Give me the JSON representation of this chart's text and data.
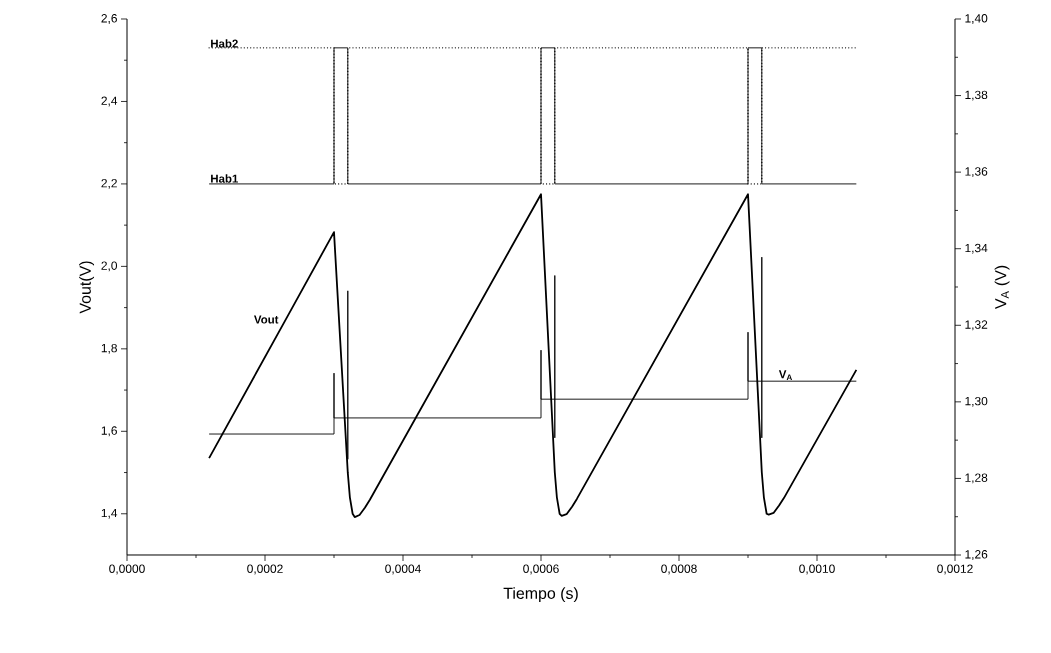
{
  "chart_data": {
    "type": "line",
    "xlabel": "Tiempo (s)",
    "ylabel": "Vout(V)",
    "y2label": "V$_{A}$ (V)",
    "xlim": [
      0,
      0.0012
    ],
    "xticks": [
      {
        "value": 0,
        "label": "0,0000"
      },
      {
        "value": 0.0002,
        "label": "0,0002"
      },
      {
        "value": 0.0004,
        "label": "0,0004"
      },
      {
        "value": 0.0006,
        "label": "0,0006"
      },
      {
        "value": 0.0008,
        "label": "0,0008"
      },
      {
        "value": 0.001,
        "label": "0,0010"
      },
      {
        "value": 0.0012,
        "label": "0,0012"
      }
    ],
    "ylim": [
      1.3,
      2.6
    ],
    "yticks": [
      {
        "value": 1.4,
        "label": "1,4"
      },
      {
        "value": 1.6,
        "label": "1,6"
      },
      {
        "value": 1.8,
        "label": "1,8"
      },
      {
        "value": 2.0,
        "label": "2,0"
      },
      {
        "value": 2.2,
        "label": "2,2"
      },
      {
        "value": 2.4,
        "label": "2,4"
      },
      {
        "value": 2.6,
        "label": "2,6"
      }
    ],
    "y2lim": [
      1.26,
      1.4
    ],
    "y2ticks": [
      {
        "value": 1.26,
        "label": "1,26"
      },
      {
        "value": 1.28,
        "label": "1,28"
      },
      {
        "value": 1.3,
        "label": "1,30"
      },
      {
        "value": 1.32,
        "label": "1,32"
      },
      {
        "value": 1.34,
        "label": "1,34"
      },
      {
        "value": 1.36,
        "label": "1,36"
      },
      {
        "value": 1.38,
        "label": "1,38"
      },
      {
        "value": 1.4,
        "label": "1,40"
      }
    ],
    "series": [
      {
        "name": "Vout",
        "color": "#000000",
        "line_style": "solid",
        "x": [
          0.000119,
          0.00023,
          0.0003,
          0.00032,
          0.000323,
          0.000327,
          0.00033,
          0.000337,
          0.000345,
          0.000352,
          0.0006,
          0.00062,
          0.000623,
          0.000627,
          0.00063,
          0.000637,
          0.000645,
          0.000652,
          0.0009,
          0.00092,
          0.000923,
          0.000927,
          0.00093,
          0.000937,
          0.000945,
          0.000952,
          0.001057
        ],
        "values": [
          1.535,
          1.871,
          2.083,
          1.499,
          1.44,
          1.4,
          1.392,
          1.397,
          1.415,
          1.434,
          2.175,
          1.5,
          1.44,
          1.4,
          1.395,
          1.399,
          1.417,
          1.436,
          2.175,
          1.5,
          1.44,
          1.4,
          1.398,
          1.402,
          1.42,
          1.438,
          1.749
        ]
      },
      {
        "name": "V$_{A}$",
        "color": "#000000",
        "line_style": "solid",
        "axis": "y2",
        "x": [
          0.000119,
          0.0003,
          0.0003,
          0.0003,
          0.00032,
          0.00032,
          0.00032,
          0.00032,
          0.0006,
          0.0006,
          0.0006,
          0.00062,
          0.00062,
          0.00062,
          0.00062,
          0.0009,
          0.0009,
          0.0009,
          0.00092,
          0.00092,
          0.00092,
          0.00092,
          0.00094,
          0.001057
        ],
        "values": [
          1.2916,
          1.2916,
          1.3075,
          1.2958,
          1.2958,
          1.329,
          1.285,
          1.2958,
          1.2958,
          1.3135,
          1.3007,
          1.3007,
          1.333,
          1.2906,
          1.3007,
          1.3007,
          1.3182,
          1.3054,
          1.3054,
          1.3378,
          1.2906,
          1.3054,
          1.3054,
          1.3054
        ]
      },
      {
        "name": "Hab1",
        "color": "#000000",
        "line_style": "solid",
        "x": [
          0.000119,
          0.0003,
          0.0003,
          0.00032,
          0.00032,
          0.0006,
          0.0006,
          0.00062,
          0.00062,
          0.0009,
          0.0009,
          0.00092,
          0.00092,
          0.001057
        ],
        "values": [
          2.2,
          2.2,
          2.53,
          2.53,
          2.2,
          2.2,
          2.53,
          2.53,
          2.2,
          2.2,
          2.53,
          2.53,
          2.2,
          2.2
        ]
      },
      {
        "name": "Hab2",
        "color": "#000000",
        "line_style": "dotted",
        "x": [
          0.000119,
          0.0003,
          0.0003,
          0.00032,
          0.00032,
          0.0006,
          0.0006,
          0.00062,
          0.00062,
          0.0009,
          0.0009,
          0.00092,
          0.00092,
          0.001057
        ],
        "values": [
          2.53,
          2.53,
          2.2,
          2.2,
          2.53,
          2.53,
          2.2,
          2.2,
          2.53,
          2.53,
          2.2,
          2.2,
          2.53,
          2.53
        ]
      }
    ]
  }
}
